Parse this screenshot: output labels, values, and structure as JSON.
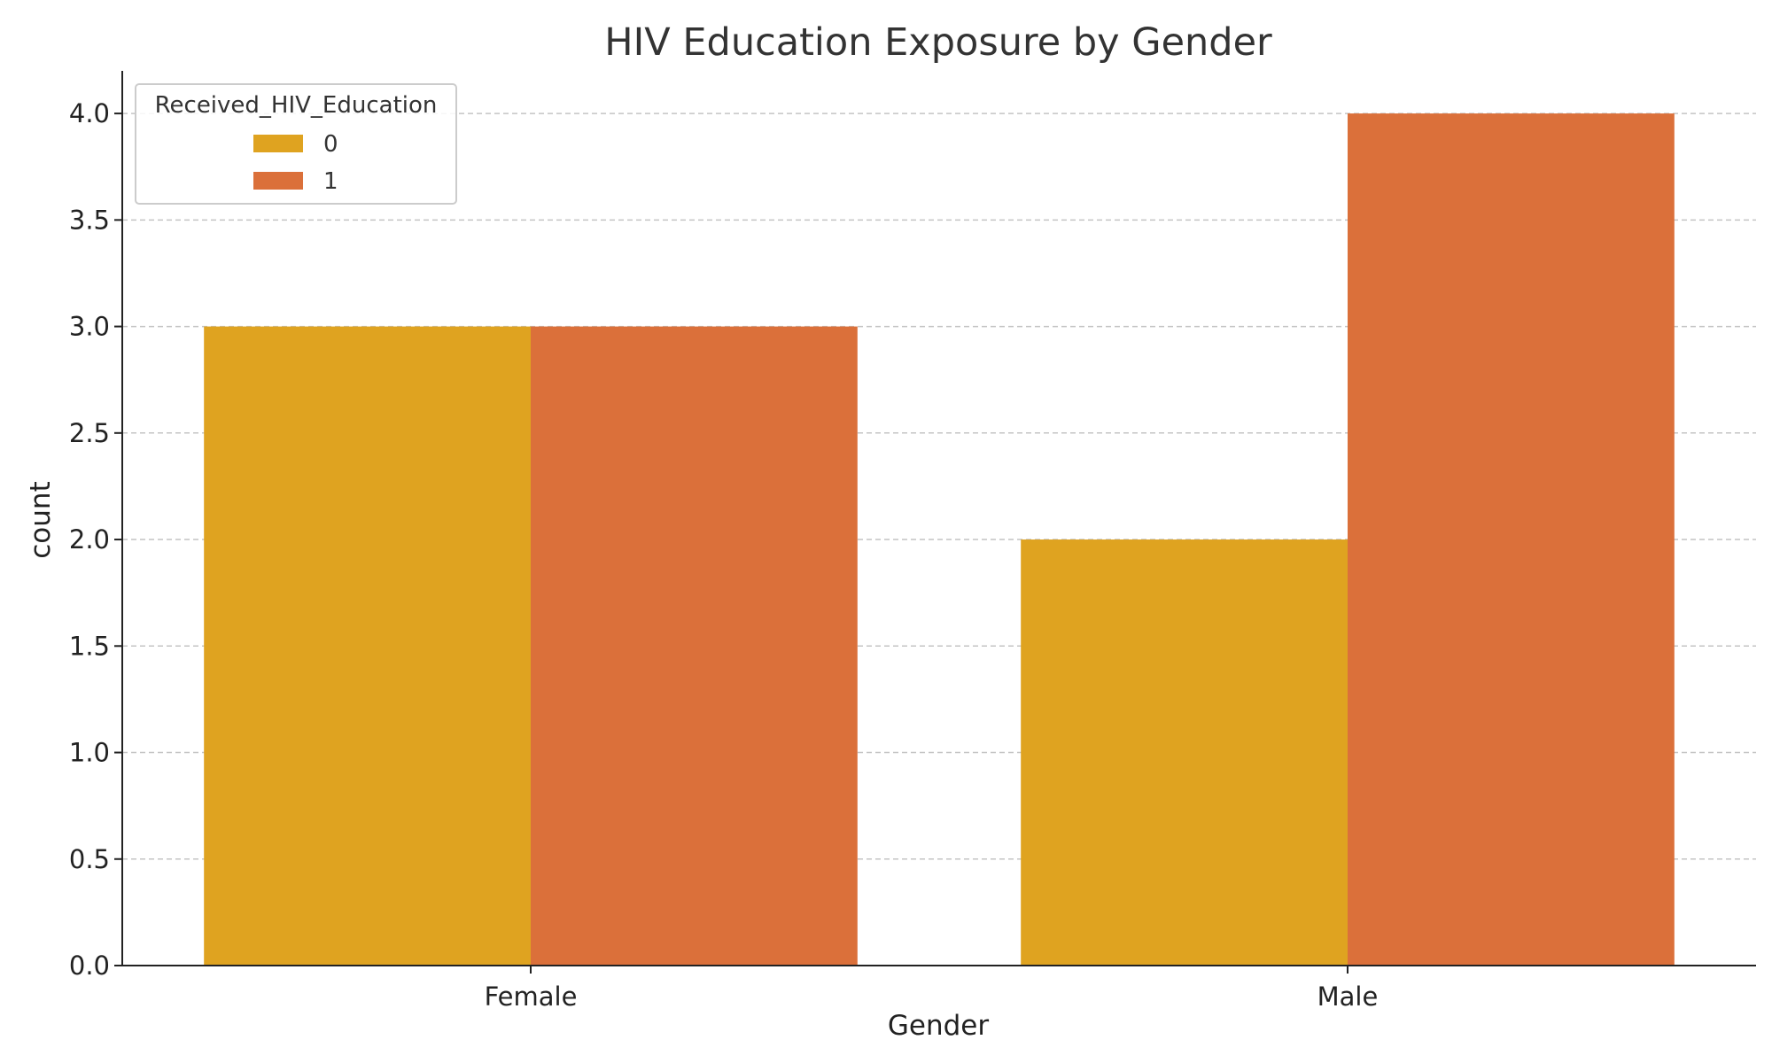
{
  "chart_data": {
    "type": "bar",
    "title": "HIV Education Exposure by Gender",
    "xlabel": "Gender",
    "ylabel": "count",
    "categories": [
      "Female",
      "Male"
    ],
    "series": [
      {
        "name": "0",
        "values": [
          3,
          2
        ],
        "color": "#dfa320"
      },
      {
        "name": "1",
        "values": [
          3,
          4
        ],
        "color": "#db703a"
      }
    ],
    "ylim": [
      0,
      4.2
    ],
    "yticks": [
      "0.0",
      "0.5",
      "1.0",
      "1.5",
      "2.0",
      "2.5",
      "3.0",
      "3.5",
      "4.0"
    ],
    "legend": {
      "title": "Received_HIV_Education",
      "placement": "top-left"
    },
    "grid": true
  }
}
